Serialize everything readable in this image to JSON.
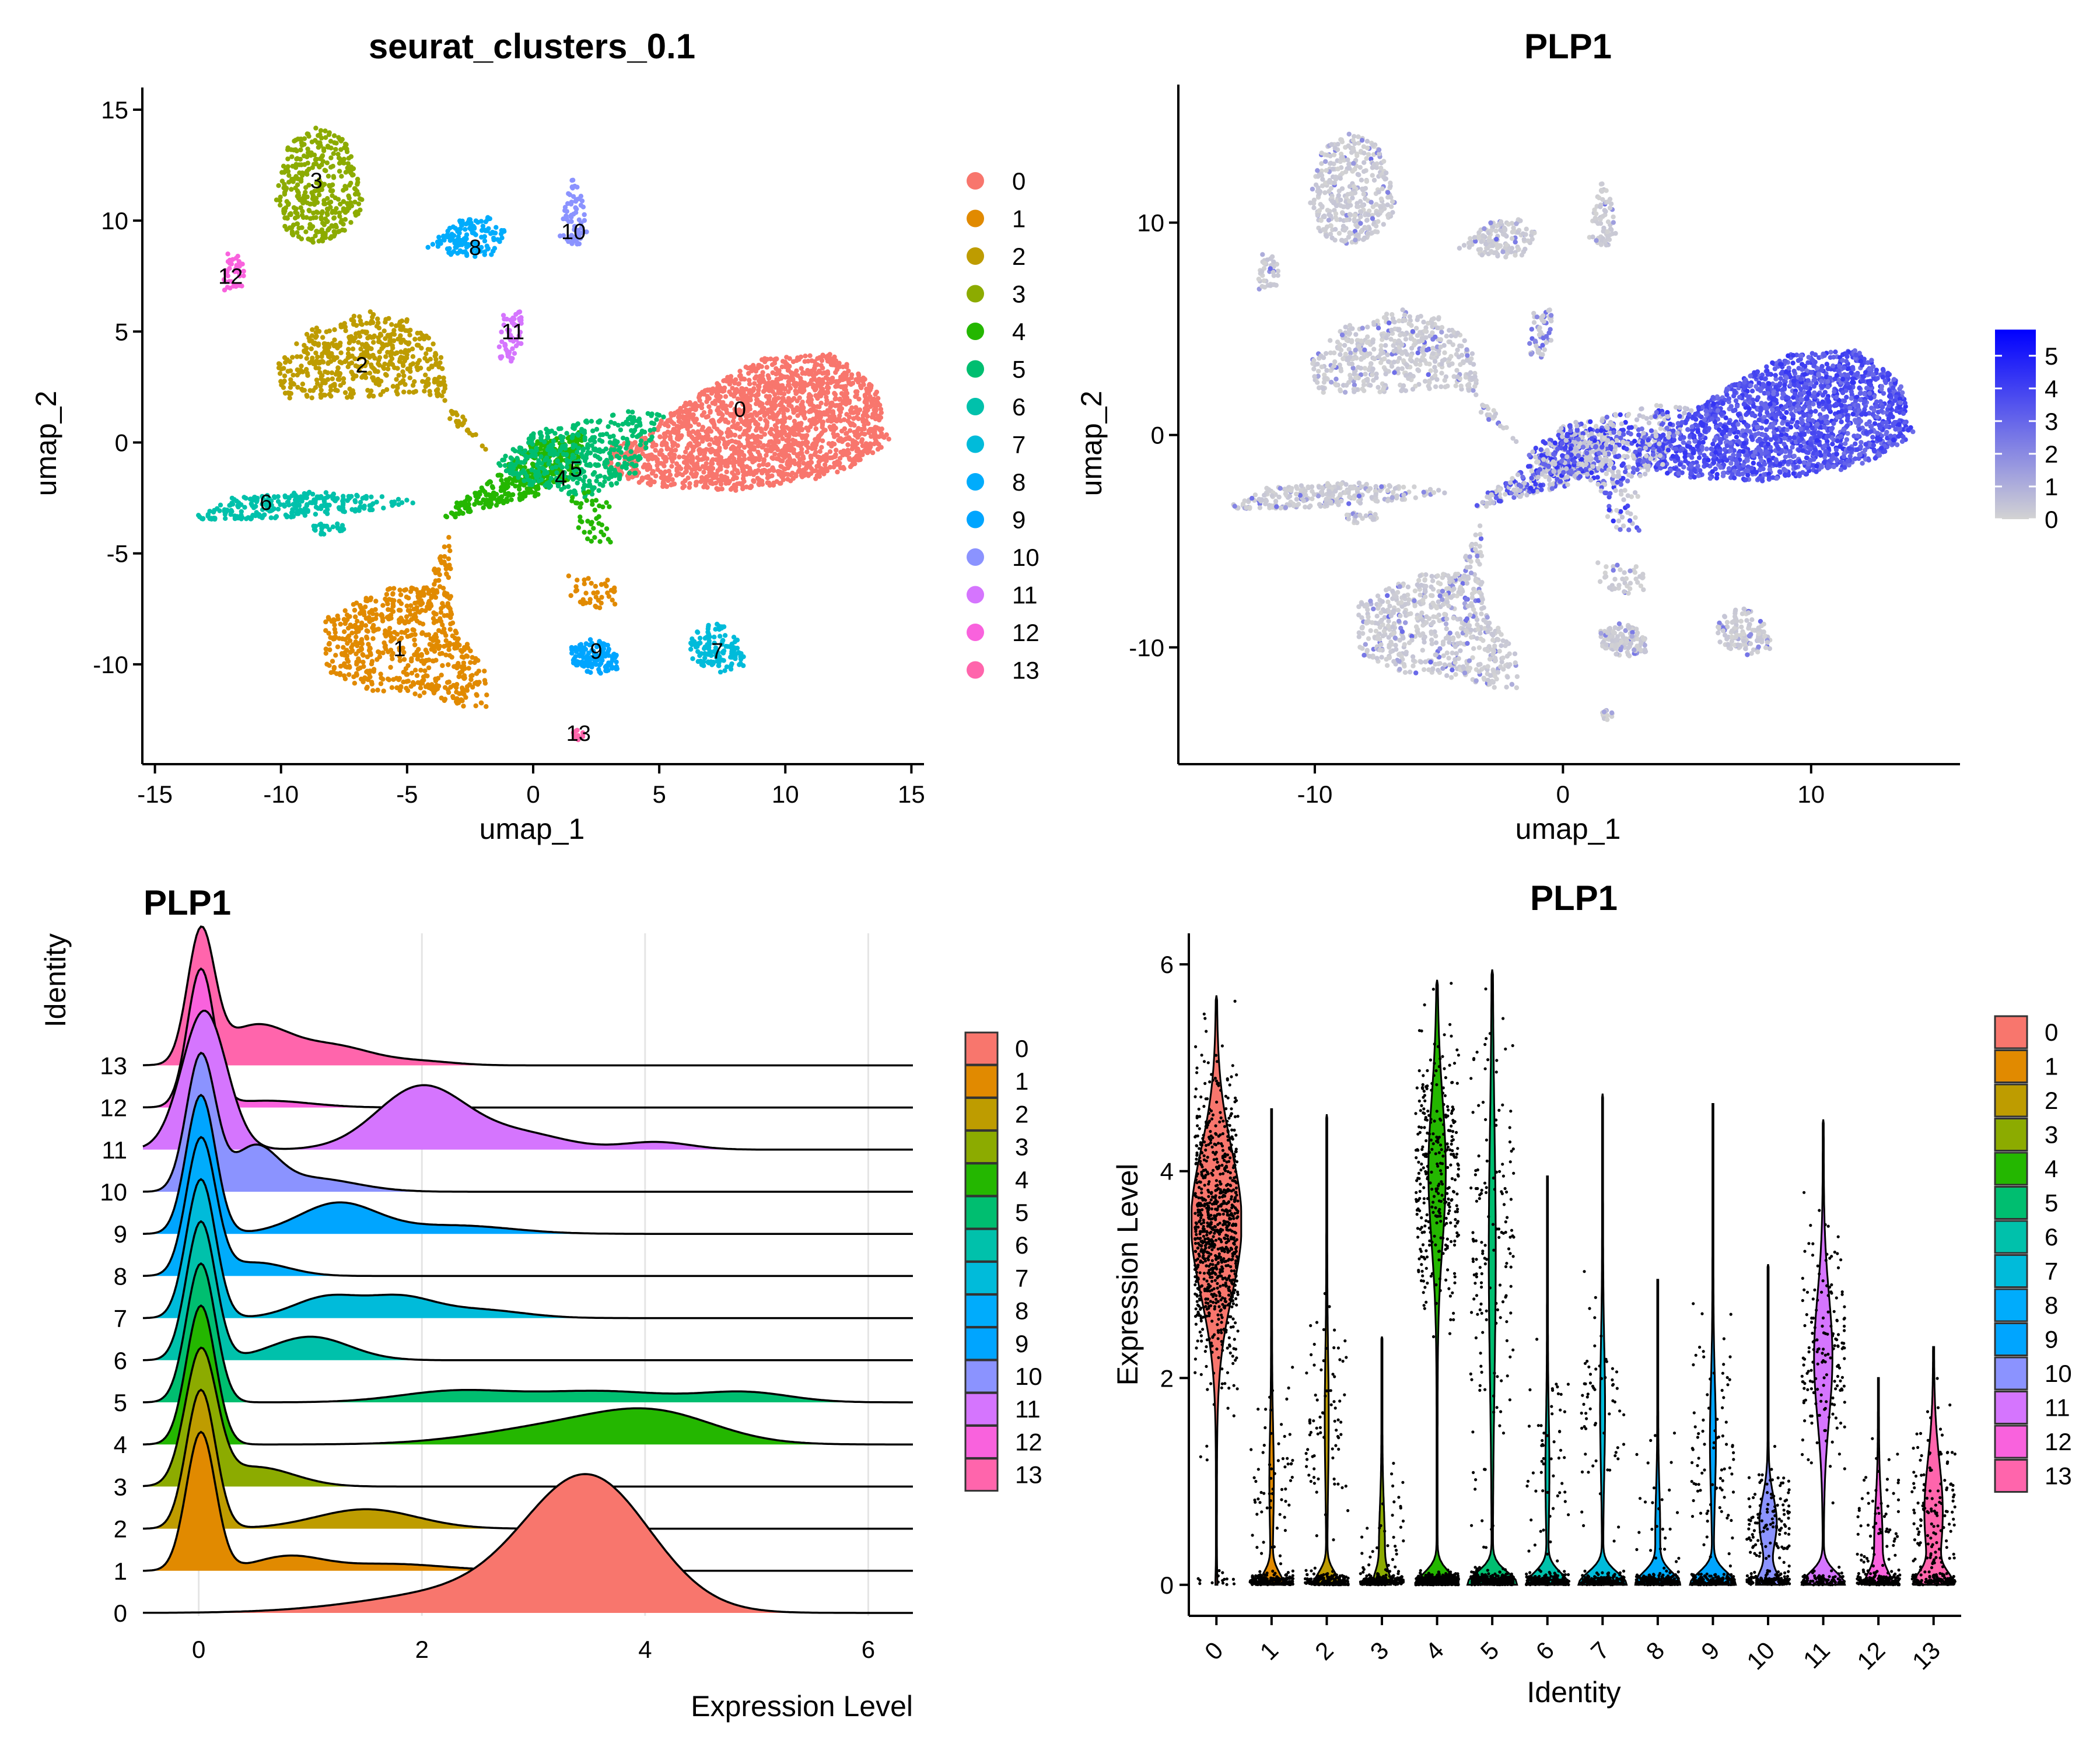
{
  "chart_data": [
    {
      "type": "scatter",
      "title": "seurat_clusters_0.1",
      "xlabel": "umap_1",
      "ylabel": "umap_2",
      "xlim": [
        -15.5,
        15.5
      ],
      "ylim": [
        -14.5,
        16
      ],
      "xticks": [
        "-15",
        "-10",
        "-5",
        "0",
        "5",
        "10",
        "15"
      ],
      "xtick_values": [
        -15,
        -10,
        -5,
        0,
        5,
        10,
        15
      ],
      "yticks": [
        "-10",
        "-5",
        "0",
        "5",
        "10",
        "15"
      ],
      "ytick_values": [
        -10,
        -5,
        0,
        5,
        10,
        15
      ],
      "legend_position": "right",
      "legend_labels": [
        "0",
        "1",
        "2",
        "3",
        "4",
        "5",
        "6",
        "7",
        "8",
        "9",
        "10",
        "11",
        "12",
        "13"
      ],
      "cluster_labels": [
        {
          "label": "0",
          "x": 8.2,
          "y": 1.5
        },
        {
          "label": "1",
          "x": -5.3,
          "y": -9.3
        },
        {
          "label": "2",
          "x": -6.8,
          "y": 3.5
        },
        {
          "label": "3",
          "x": -8.6,
          "y": 11.8
        },
        {
          "label": "4",
          "x": 1.1,
          "y": -1.6
        },
        {
          "label": "5",
          "x": 1.7,
          "y": -1.2
        },
        {
          "label": "6",
          "x": -10.6,
          "y": -2.7
        },
        {
          "label": "7",
          "x": 7.3,
          "y": -9.4
        },
        {
          "label": "8",
          "x": -2.3,
          "y": 8.8
        },
        {
          "label": "9",
          "x": 2.5,
          "y": -9.4
        },
        {
          "label": "10",
          "x": 1.6,
          "y": 9.5
        },
        {
          "label": "11",
          "x": -0.8,
          "y": 5
        },
        {
          "label": "12",
          "x": -12,
          "y": 7.5
        },
        {
          "label": "13",
          "x": 1.8,
          "y": -13.1
        }
      ]
    },
    {
      "type": "scatter",
      "title": "PLP1",
      "xlabel": "umap_1",
      "ylabel": "umap_2",
      "xlim": [
        -15.5,
        16
      ],
      "ylim": [
        -15.5,
        16.5
      ],
      "xticks": [
        "-10",
        "0",
        "10"
      ],
      "xtick_values": [
        -10,
        0,
        10
      ],
      "yticks": [
        "-10",
        "0",
        "10"
      ],
      "ytick_values": [
        -10,
        0,
        10
      ],
      "colorbar_ticks": [
        "5",
        "4",
        "3",
        "2",
        "1",
        "0"
      ],
      "colorbar_values": [
        5,
        4,
        3,
        2,
        1,
        0
      ],
      "colorbar_range": [
        0,
        5.8
      ],
      "colorbar_low": "#D3D3D3",
      "colorbar_high": "#0000FF",
      "legend_position": "right"
    },
    {
      "type": "area",
      "title": "PLP1",
      "xlabel": "Expression Level",
      "ylabel": "Identity",
      "xlim": [
        -0.5,
        6.4
      ],
      "xticks": [
        "0",
        "2",
        "4",
        "6"
      ],
      "xtick_values": [
        0,
        2,
        4,
        6
      ],
      "categories": [
        "0",
        "1",
        "2",
        "3",
        "4",
        "5",
        "6",
        "7",
        "8",
        "9",
        "10",
        "11",
        "12",
        "13"
      ],
      "legend_position": "right",
      "grid": true,
      "ridges": [
        {
          "name": "0",
          "components": [
            {
              "m": 3.5,
              "s": 0.55,
              "w": 1.0
            },
            {
              "m": 2.5,
              "s": 0.9,
              "w": 0.18
            }
          ]
        },
        {
          "name": "1",
          "components": [
            {
              "m": 0.02,
              "s": 0.13,
              "w": 1.0
            },
            {
              "m": 0.8,
              "s": 0.3,
              "w": 0.1
            },
            {
              "m": 1.7,
              "s": 0.5,
              "w": 0.05
            }
          ]
        },
        {
          "name": "2",
          "components": [
            {
              "m": 0.02,
              "s": 0.13,
              "w": 1.0
            },
            {
              "m": 1.5,
              "s": 0.45,
              "w": 0.14
            }
          ]
        },
        {
          "name": "3",
          "components": [
            {
              "m": 0.02,
              "s": 0.14,
              "w": 1.0
            },
            {
              "m": 0.5,
              "s": 0.35,
              "w": 0.15
            }
          ]
        },
        {
          "name": "4",
          "components": [
            {
              "m": 0.02,
              "s": 0.13,
              "w": 1.0
            },
            {
              "m": 4.1,
              "s": 0.55,
              "w": 0.2
            },
            {
              "m": 3.2,
              "s": 0.7,
              "w": 0.12
            }
          ]
        },
        {
          "name": "5",
          "components": [
            {
              "m": 0.02,
              "s": 0.13,
              "w": 1.0
            },
            {
              "m": 2.3,
              "s": 0.5,
              "w": 0.08
            },
            {
              "m": 3.6,
              "s": 0.6,
              "w": 0.08
            },
            {
              "m": 4.9,
              "s": 0.4,
              "w": 0.07
            }
          ]
        },
        {
          "name": "6",
          "components": [
            {
              "m": 0.02,
              "s": 0.13,
              "w": 1.0
            },
            {
              "m": 1.0,
              "s": 0.35,
              "w": 0.17
            }
          ]
        },
        {
          "name": "7",
          "components": [
            {
              "m": 0.02,
              "s": 0.13,
              "w": 1.0
            },
            {
              "m": 1.15,
              "s": 0.3,
              "w": 0.15
            },
            {
              "m": 1.8,
              "s": 0.3,
              "w": 0.14
            },
            {
              "m": 2.5,
              "s": 0.4,
              "w": 0.06
            }
          ]
        },
        {
          "name": "8",
          "components": [
            {
              "m": 0.02,
              "s": 0.13,
              "w": 1.0
            },
            {
              "m": 0.5,
              "s": 0.3,
              "w": 0.1
            }
          ]
        },
        {
          "name": "9",
          "components": [
            {
              "m": 0.02,
              "s": 0.13,
              "w": 1.0
            },
            {
              "m": 1.25,
              "s": 0.35,
              "w": 0.22
            },
            {
              "m": 2.3,
              "s": 0.5,
              "w": 0.06
            }
          ]
        },
        {
          "name": "10",
          "components": [
            {
              "m": 0.02,
              "s": 0.13,
              "w": 1.0
            },
            {
              "m": 0.5,
              "s": 0.2,
              "w": 0.3
            },
            {
              "m": 1.0,
              "s": 0.4,
              "w": 0.1
            }
          ]
        },
        {
          "name": "11",
          "components": [
            {
              "m": 0.05,
              "s": 0.2,
              "w": 0.55
            },
            {
              "m": 2.0,
              "s": 0.4,
              "w": 0.25
            },
            {
              "m": 2.9,
              "s": 0.4,
              "w": 0.06
            },
            {
              "m": 4.1,
              "s": 0.3,
              "w": 0.03
            }
          ]
        },
        {
          "name": "12",
          "components": [
            {
              "m": 0.02,
              "s": 0.12,
              "w": 1.0
            },
            {
              "m": 0.6,
              "s": 0.4,
              "w": 0.05
            }
          ]
        },
        {
          "name": "13",
          "components": [
            {
              "m": 0.02,
              "s": 0.12,
              "w": 1.0
            },
            {
              "m": 0.5,
              "s": 0.3,
              "w": 0.3
            },
            {
              "m": 1.2,
              "s": 0.35,
              "w": 0.15
            },
            {
              "m": 2.0,
              "s": 0.3,
              "w": 0.03
            }
          ]
        }
      ]
    },
    {
      "type": "scatter",
      "title": "PLP1",
      "xlabel": "Identity",
      "ylabel": "Expression Level",
      "ylim": [
        -0.3,
        6.3
      ],
      "yticks": [
        "0",
        "2",
        "4",
        "6"
      ],
      "ytick_values": [
        0,
        2,
        4,
        6
      ],
      "categories": [
        "0",
        "1",
        "2",
        "3",
        "4",
        "5",
        "6",
        "7",
        "8",
        "9",
        "10",
        "11",
        "12",
        "13"
      ],
      "legend_position": "right",
      "violins": [
        {
          "name": "0",
          "max": 5.7,
          "zero_frac": 0.02,
          "mu": 3.5,
          "sd": 0.7,
          "wz": 0.02,
          "wm": 1.0
        },
        {
          "name": "1",
          "max": 4.6,
          "zero_frac": 0.75,
          "mu": 1.0,
          "sd": 0.5,
          "wz": 0.45,
          "wm": 0.07
        },
        {
          "name": "2",
          "max": 4.55,
          "zero_frac": 0.72,
          "mu": 1.6,
          "sd": 0.6,
          "wz": 0.5,
          "wm": 0.06
        },
        {
          "name": "3",
          "max": 2.4,
          "zero_frac": 0.8,
          "mu": 0.35,
          "sd": 0.4,
          "wz": 0.28,
          "wm": 0.1
        },
        {
          "name": "4",
          "max": 5.85,
          "zero_frac": 0.55,
          "mu": 4.0,
          "sd": 0.7,
          "wz": 0.8,
          "wm": 0.33
        },
        {
          "name": "5",
          "max": 5.95,
          "zero_frac": 0.65,
          "mu": 3.2,
          "sd": 1.2,
          "wz": 1.0,
          "wm": 0.12
        },
        {
          "name": "6",
          "max": 3.95,
          "zero_frac": 0.8,
          "mu": 1.1,
          "sd": 0.5,
          "wz": 0.82,
          "wm": 0.06
        },
        {
          "name": "7",
          "max": 4.75,
          "zero_frac": 0.75,
          "mu": 1.7,
          "sd": 0.6,
          "wz": 0.95,
          "wm": 0.08
        },
        {
          "name": "8",
          "max": 2.95,
          "zero_frac": 0.85,
          "mu": 0.5,
          "sd": 0.4,
          "wz": 0.85,
          "wm": 0.08
        },
        {
          "name": "9",
          "max": 4.65,
          "zero_frac": 0.7,
          "mu": 1.4,
          "sd": 0.55,
          "wz": 0.9,
          "wm": 0.1
        },
        {
          "name": "10",
          "max": 3.1,
          "zero_frac": 0.55,
          "mu": 0.6,
          "sd": 0.25,
          "wz": 0.45,
          "wm": 0.33
        },
        {
          "name": "11",
          "max": 4.5,
          "zero_frac": 0.35,
          "mu": 2.2,
          "sd": 0.6,
          "wz": 0.85,
          "wm": 0.35
        },
        {
          "name": "12",
          "max": 2.0,
          "zero_frac": 0.7,
          "mu": 0.4,
          "sd": 0.4,
          "wz": 0.45,
          "wm": 0.15
        },
        {
          "name": "13",
          "max": 2.3,
          "zero_frac": 0.45,
          "mu": 0.7,
          "sd": 0.5,
          "wz": 0.65,
          "wm": 0.35
        }
      ]
    }
  ],
  "palette": [
    "#F8766D",
    "#E18A00",
    "#BE9C00",
    "#8CAB00",
    "#24B700",
    "#00BE70",
    "#00C1AB",
    "#00BBDA",
    "#00ACFC",
    "#00A5FF",
    "#8B93FF",
    "#D575FE",
    "#F962DD",
    "#FF65AC"
  ]
}
